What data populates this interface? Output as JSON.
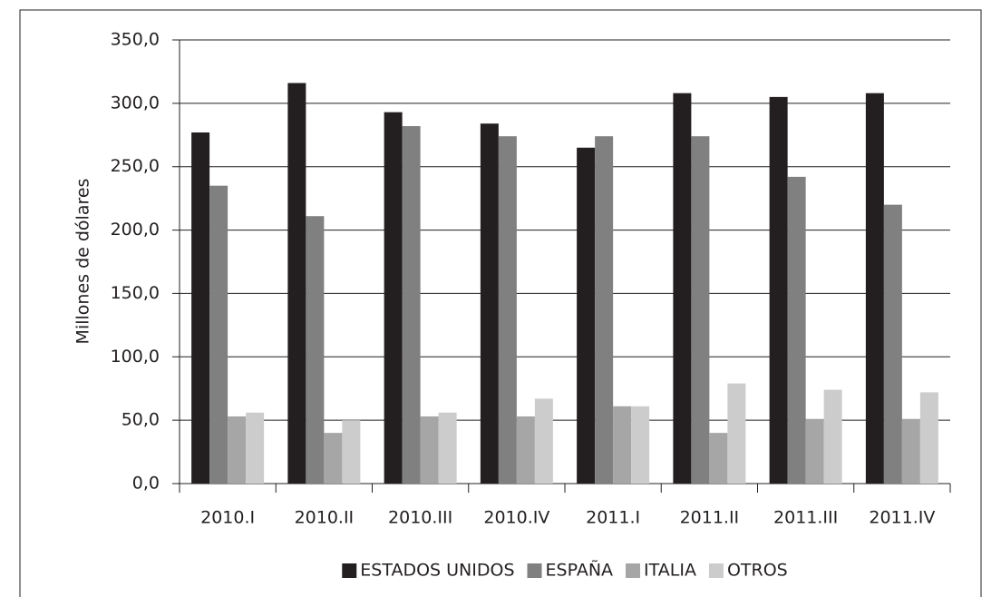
{
  "chart_data": {
    "type": "bar",
    "y_label": "Millones de dólares",
    "categories": [
      "2010.I",
      "2010.II",
      "2010.III",
      "2010.IV",
      "2011.I",
      "2011.II",
      "2011.III",
      "2011.IV"
    ],
    "series": [
      {
        "name": "ESTADOS UNIDOS",
        "color": "#231f20",
        "values": [
          277,
          316,
          293,
          284,
          265,
          308,
          305,
          308
        ]
      },
      {
        "name": "ESPAÑA",
        "color": "#808080",
        "values": [
          235,
          211,
          282,
          274,
          274,
          274,
          242,
          220
        ]
      },
      {
        "name": "ITALIA",
        "color": "#a6a6a6",
        "values": [
          53,
          40,
          53,
          53,
          61,
          40,
          51,
          51
        ]
      },
      {
        "name": "OTROS",
        "color": "#cccccc",
        "values": [
          56,
          50,
          56,
          67,
          61,
          79,
          74,
          72
        ]
      }
    ],
    "ylim": [
      0,
      350
    ],
    "yticks": [
      {
        "value": 0,
        "label": "0,0"
      },
      {
        "value": 50,
        "label": "50,0"
      },
      {
        "value": 100,
        "label": "100,0"
      },
      {
        "value": 150,
        "label": "150,0"
      },
      {
        "value": 200,
        "label": "200,0"
      },
      {
        "value": 250,
        "label": "250,0"
      },
      {
        "value": 300,
        "label": "300,0"
      },
      {
        "value": 350,
        "label": "350,0"
      }
    ],
    "grid": true,
    "legend": "bottom"
  }
}
